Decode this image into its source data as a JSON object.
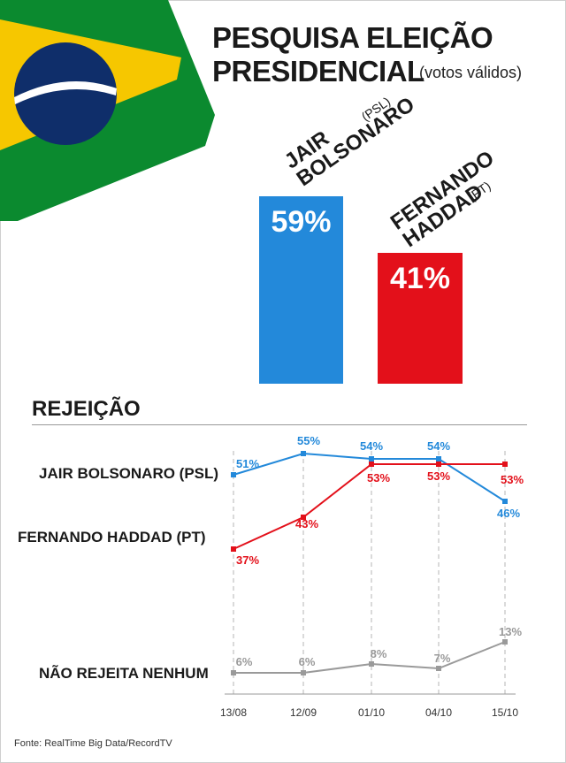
{
  "title_line1": "PESQUISA ELEIÇÃO",
  "title_line2": "PRESIDENCIAL",
  "subtitle": "(votos válidos)",
  "colors": {
    "bolsonaro": "#2389da",
    "haddad": "#e3101a",
    "nenhum": "#9a9a9a",
    "flag_green": "#0b8a2f",
    "flag_yellow": "#f6c700",
    "flag_blue": "#0f2e6a"
  },
  "candidates": [
    {
      "name_line1": "JAIR",
      "name_line2": "BOLSONARO",
      "party": "(PSL)",
      "value": 59,
      "label": "59%"
    },
    {
      "name_line1": "FERNANDO",
      "name_line2": "HADDAD",
      "party": "(PT)",
      "value": 41,
      "label": "41%"
    }
  ],
  "rejection_title": "REJEIÇÃO",
  "row_labels": {
    "bolsonaro": "JAIR BOLSONARO (PSL)",
    "haddad": "FERNANDO HADDAD (PT)",
    "nenhum": "NÃO REJEITA NENHUM"
  },
  "source": "Fonte: RealTime Big Data/RecordTV",
  "chart_data": [
    {
      "type": "bar",
      "categories": [
        "JAIR BOLSONARO (PSL)",
        "FERNANDO HADDAD (PT)"
      ],
      "values": [
        59,
        41
      ]
    },
    {
      "type": "line",
      "categories": [
        "13/08",
        "12/09",
        "01/10",
        "04/10",
        "15/10"
      ],
      "series": [
        {
          "name": "JAIR BOLSONARO (PSL)",
          "values": [
            51,
            55,
            54,
            54,
            46
          ],
          "labels": [
            "51%",
            "55%",
            "54%",
            "54%",
            "46%"
          ]
        },
        {
          "name": "FERNANDO HADDAD (PT)",
          "values": [
            37,
            43,
            53,
            53,
            53
          ],
          "labels": [
            "37%",
            "43%",
            "53%",
            "53%",
            "53%"
          ]
        },
        {
          "name": "NÃO REJEITA NENHUM",
          "values": [
            6,
            6,
            8,
            7,
            13
          ],
          "labels": [
            "6%",
            "6%",
            "8%",
            "7%",
            "13%"
          ]
        }
      ]
    }
  ]
}
